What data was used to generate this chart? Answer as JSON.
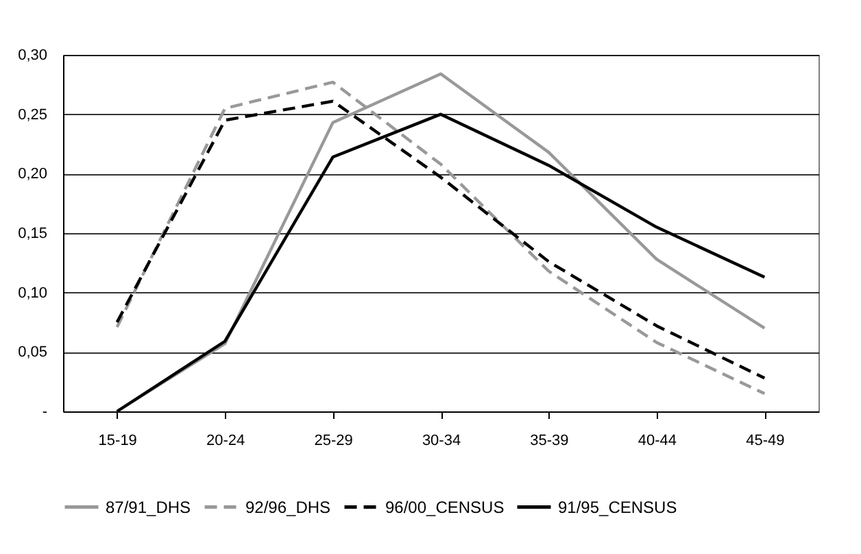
{
  "chart_data": {
    "type": "line",
    "categories": [
      "15-19",
      "20-24",
      "25-29",
      "30-34",
      "35-39",
      "40-44",
      "45-49"
    ],
    "series": [
      {
        "name": "87/91_DHS",
        "color": "#999999",
        "line_style": "solid",
        "values": [
          0,
          0.057,
          0.243,
          0.284,
          0.218,
          0.128,
          0.07
        ]
      },
      {
        "name": "92/96_DHS",
        "color": "#999999",
        "line_style": "dashed",
        "values": [
          0.071,
          0.255,
          0.277,
          0.208,
          0.118,
          0.058,
          0.015
        ]
      },
      {
        "name": "96/00_CENSUS",
        "color": "#000000",
        "line_style": "dashed",
        "values": [
          0.075,
          0.245,
          0.261,
          0.197,
          0.126,
          0.072,
          0.028
        ]
      },
      {
        "name": "91/95_CENSUS",
        "color": "#000000",
        "line_style": "solid",
        "values": [
          0,
          0.059,
          0.214,
          0.25,
          0.207,
          0.155,
          0.113
        ]
      }
    ],
    "ylim": [
      0,
      0.3
    ],
    "yticks": [
      {
        "value": 0,
        "label": "-"
      },
      {
        "value": 0.05,
        "label": "0,05"
      },
      {
        "value": 0.1,
        "label": "0,10"
      },
      {
        "value": 0.15,
        "label": "0,15"
      },
      {
        "value": 0.2,
        "label": "0,20"
      },
      {
        "value": 0.25,
        "label": "0,25"
      },
      {
        "value": 0.3,
        "label": "0,30"
      }
    ],
    "grid": "y",
    "legend": "bottom",
    "marker": "none"
  }
}
